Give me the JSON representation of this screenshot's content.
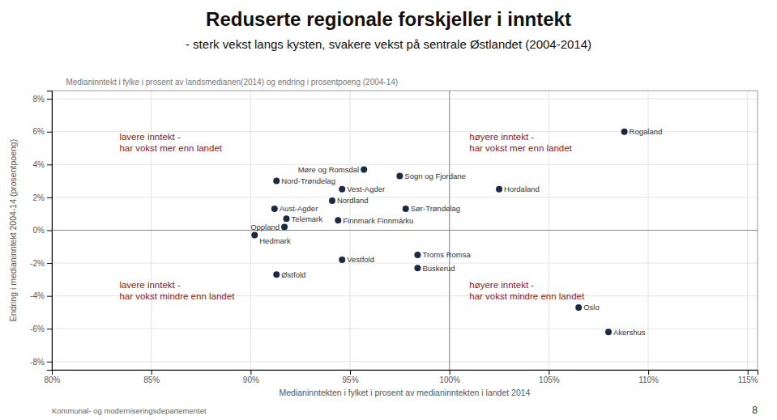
{
  "chart_data": {
    "type": "scatter",
    "title": "Reduserte regionale forskjeller i inntekt",
    "subtitle": "- sterk vekst langs kysten, svakere vekst på sentrale Østlandet (2004-2014)",
    "plot_title": "Medianinntekt i fylke i prosent av landsmedianen(2014) og endring i prosentpoeng (2004-14)",
    "xlabel": "Medianinntekten i fylket i prosent av medianinntekten i landet 2014",
    "ylabel": "Endring i medianinntekt 2004-14 (prosentpoeng)",
    "footer": "Kommunal- og moderniseringsdepartementet",
    "page_number": "8",
    "color": "#1b2a40",
    "grid": true,
    "xlim": [
      0.8,
      1.155
    ],
    "ylim": [
      -0.085,
      0.085
    ],
    "xticks": [
      {
        "value": 0.8,
        "label": "80%"
      },
      {
        "value": 0.85,
        "label": "85%"
      },
      {
        "value": 0.9,
        "label": "90%"
      },
      {
        "value": 0.95,
        "label": "95%"
      },
      {
        "value": 1.0,
        "label": "100%"
      },
      {
        "value": 1.05,
        "label": "105%"
      },
      {
        "value": 1.1,
        "label": "110%"
      },
      {
        "value": 1.15,
        "label": "115%"
      }
    ],
    "yticks": [
      {
        "value": -0.08,
        "label": "-8%"
      },
      {
        "value": -0.06,
        "label": "-6%"
      },
      {
        "value": -0.04,
        "label": "-4%"
      },
      {
        "value": -0.02,
        "label": "-2%"
      },
      {
        "value": 0.0,
        "label": "0%"
      },
      {
        "value": 0.02,
        "label": "2%"
      },
      {
        "value": 0.04,
        "label": "4%"
      },
      {
        "value": 0.06,
        "label": "6%"
      },
      {
        "value": 0.08,
        "label": "8%"
      }
    ],
    "reference_lines": [
      {
        "axis": "y",
        "value": 0
      },
      {
        "axis": "x",
        "value": 1.0
      }
    ],
    "labels": [
      "Rogaland",
      "Hordaland",
      "Sogn og Fjordane",
      "Møre og Romsdal",
      "Nord-Trøndelag",
      "Vest-Agder",
      "Nordland",
      "Sør-Trøndelag",
      "Aust-Agder",
      "Telemark",
      "Finnmark Finnmárku",
      "Oppland",
      "Hedmark",
      "Troms Romsa",
      "Vestfold",
      "Østfold",
      "Buskerud",
      "Oslo",
      "Akershus"
    ],
    "x": [
      1.088,
      1.025,
      0.975,
      0.957,
      0.913,
      0.946,
      0.941,
      0.978,
      0.912,
      0.918,
      0.944,
      0.917,
      0.902,
      0.984,
      0.946,
      0.913,
      0.984,
      1.065,
      1.08
    ],
    "values": [
      0.06,
      0.025,
      0.033,
      0.037,
      0.03,
      0.025,
      0.018,
      0.013,
      0.013,
      0.007,
      0.006,
      0.002,
      -0.003,
      -0.015,
      -0.018,
      -0.027,
      -0.023,
      -0.047,
      -0.062
    ],
    "annotations": [
      {
        "text": "lavere inntekt -\nhar vokst mer enn landet",
        "x": 0.834,
        "y": 0.06,
        "color": "#8b1a1a"
      },
      {
        "text": "høyere inntekt -\nhar vokst mer enn landet",
        "x": 1.01,
        "y": 0.06,
        "color": "#8b1a1a"
      },
      {
        "text": "lavere inntekt -\nhar vokst mindre enn landet",
        "x": 0.834,
        "y": -0.03,
        "color": "#8b1a1a"
      },
      {
        "text": "høyere inntekt -\nhar vokst mindre enn landet",
        "x": 1.01,
        "y": -0.03,
        "color": "#8b1a1a"
      }
    ]
  }
}
